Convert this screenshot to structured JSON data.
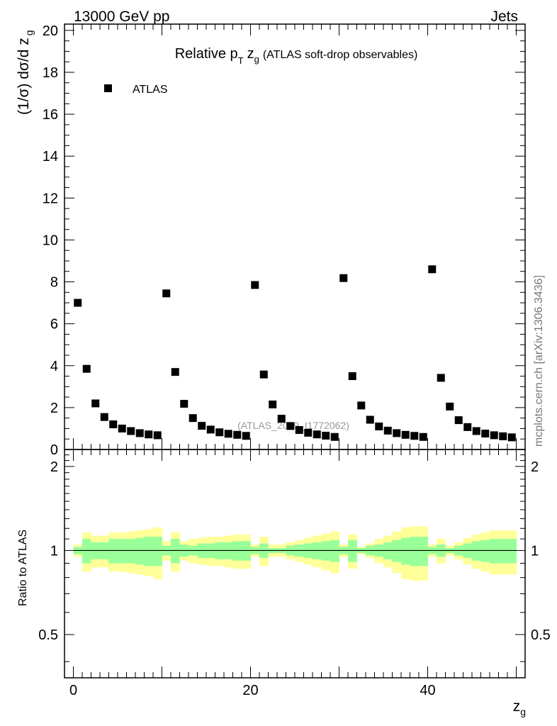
{
  "header": {
    "left": "13000 GeV pp",
    "right": "Jets"
  },
  "side_label": "mcplots.cern.ch [arXiv:1306.3436]",
  "watermark": "(ATLAS_2019_I1772062)",
  "chart_data": [
    {
      "type": "scatter",
      "title_main": "Relative p",
      "title_sub_T": "T",
      "title_z": "z",
      "title_sub_g": "g",
      "title_rest": "(ATLAS soft-drop observables)",
      "ylabel_main": "(1/σ) dσ/d z",
      "ylabel_sub": "g",
      "xlim": [
        -1,
        51
      ],
      "ylim": [
        0,
        20.3
      ],
      "yticks": [
        0,
        2,
        4,
        6,
        8,
        10,
        12,
        14,
        16,
        18,
        20
      ],
      "grid": false,
      "legend": {
        "position": "top-left",
        "entries": [
          "ATLAS"
        ]
      },
      "series": [
        {
          "name": "ATLAS",
          "marker": "square",
          "color": "#000000",
          "x": [
            0.5,
            1.5,
            2.5,
            3.5,
            4.5,
            5.5,
            6.5,
            7.5,
            8.5,
            9.5,
            10.5,
            11.5,
            12.5,
            13.5,
            14.5,
            15.5,
            16.5,
            17.5,
            18.5,
            19.5,
            20.5,
            21.5,
            22.5,
            23.5,
            24.5,
            25.5,
            26.5,
            27.5,
            28.5,
            29.5,
            30.5,
            31.5,
            32.5,
            33.5,
            34.5,
            35.5,
            36.5,
            37.5,
            38.5,
            39.5,
            40.5,
            41.5,
            42.5,
            43.5,
            44.5,
            45.5,
            46.5,
            47.5,
            48.5,
            49.5
          ],
          "values": [
            7.0,
            3.85,
            2.2,
            1.55,
            1.2,
            1.0,
            0.88,
            0.78,
            0.72,
            0.68,
            7.45,
            3.7,
            2.18,
            1.5,
            1.13,
            0.95,
            0.82,
            0.75,
            0.7,
            0.65,
            7.85,
            3.58,
            2.15,
            1.47,
            1.12,
            0.93,
            0.8,
            0.72,
            0.66,
            0.6,
            8.18,
            3.5,
            2.1,
            1.42,
            1.1,
            0.9,
            0.78,
            0.7,
            0.65,
            0.6,
            8.6,
            3.42,
            2.05,
            1.4,
            1.07,
            0.88,
            0.76,
            0.68,
            0.63,
            0.58
          ]
        }
      ]
    },
    {
      "type": "area",
      "ylabel": "Ratio to ATLAS",
      "xlabel_main": "z",
      "xlabel_sub": "g",
      "xlim": [
        -1,
        51
      ],
      "ylim": [
        0.35,
        2.3
      ],
      "log_y": true,
      "yticks": [
        0.5,
        1,
        2
      ],
      "ytick_labels": [
        "0.5",
        "1",
        "2"
      ],
      "xticks": [
        0,
        20,
        40
      ],
      "reference_line": 1,
      "bands": {
        "colors": {
          "outer": "#ffff99",
          "inner": "#99ff99",
          "line": "#000000"
        },
        "bin_edges": [
          0,
          1,
          2,
          3,
          4,
          5,
          6,
          7,
          8,
          9,
          10,
          11,
          12,
          13,
          14,
          15,
          16,
          17,
          18,
          19,
          20,
          21,
          22,
          23,
          24,
          25,
          26,
          27,
          28,
          29,
          30,
          31,
          32,
          33,
          34,
          35,
          36,
          37,
          38,
          39,
          40,
          41,
          42,
          43,
          44,
          45,
          46,
          47,
          48,
          49,
          50
        ],
        "inner_half_width": [
          0.03,
          0.1,
          0.07,
          0.07,
          0.1,
          0.1,
          0.1,
          0.11,
          0.12,
          0.12,
          0.04,
          0.1,
          0.05,
          0.04,
          0.06,
          0.06,
          0.07,
          0.07,
          0.08,
          0.08,
          0.03,
          0.06,
          0.02,
          0.02,
          0.04,
          0.05,
          0.06,
          0.07,
          0.08,
          0.09,
          0.03,
          0.09,
          0.02,
          0.04,
          0.05,
          0.07,
          0.09,
          0.11,
          0.12,
          0.12,
          0.03,
          0.05,
          0.02,
          0.04,
          0.06,
          0.08,
          0.09,
          0.1,
          0.1,
          0.1
        ],
        "outer_half_width": [
          0.05,
          0.16,
          0.13,
          0.13,
          0.16,
          0.16,
          0.17,
          0.18,
          0.19,
          0.21,
          0.08,
          0.16,
          0.08,
          0.1,
          0.11,
          0.12,
          0.12,
          0.13,
          0.14,
          0.14,
          0.05,
          0.12,
          0.05,
          0.05,
          0.07,
          0.09,
          0.11,
          0.13,
          0.15,
          0.17,
          0.05,
          0.14,
          0.03,
          0.06,
          0.1,
          0.13,
          0.17,
          0.21,
          0.22,
          0.22,
          0.05,
          0.1,
          0.04,
          0.07,
          0.11,
          0.14,
          0.16,
          0.18,
          0.18,
          0.18
        ]
      }
    }
  ]
}
